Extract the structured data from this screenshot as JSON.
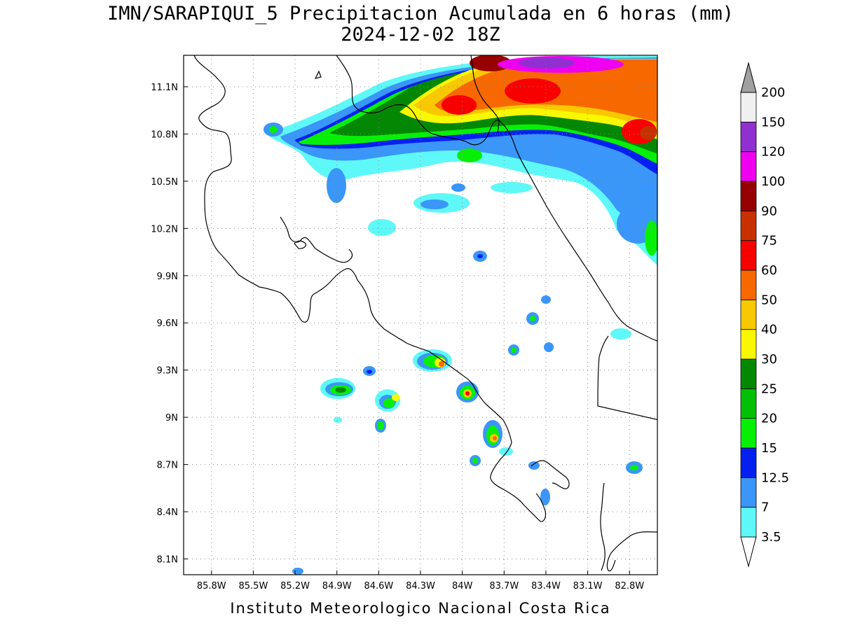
{
  "title": {
    "line1": "IMN/SARAPIQUI_5 Precipitacion Acumulada en 6 horas (mm)",
    "line2": "2024-12-02 18Z"
  },
  "footer": "Instituto Meteorologico Nacional Costa Rica",
  "chart_data": {
    "type": "heatmap",
    "variable": "Precipitacion Acumulada en 6 horas",
    "units": "mm",
    "lon_range": [
      -86.0,
      -82.6
    ],
    "lat_range": [
      8.0,
      11.3
    ],
    "x_ticks": [
      "85.8W",
      "85.5W",
      "85.2W",
      "84.9W",
      "84.6W",
      "84.3W",
      "84W",
      "83.7W",
      "83.4W",
      "83.1W",
      "82.8W"
    ],
    "x_tick_values": [
      -85.8,
      -85.5,
      -85.2,
      -84.9,
      -84.6,
      -84.3,
      -84.0,
      -83.7,
      -83.4,
      -83.1,
      -82.8
    ],
    "y_ticks": [
      "11.1N",
      "10.8N",
      "10.5N",
      "10.2N",
      "9.9N",
      "9.6N",
      "9.3N",
      "9N",
      "8.7N",
      "8.4N",
      "8.1N"
    ],
    "y_tick_values": [
      11.1,
      10.8,
      10.5,
      10.2,
      9.9,
      9.6,
      9.3,
      9.0,
      8.7,
      8.4,
      8.1
    ],
    "grid": true,
    "legend_placement": "right",
    "colorbar": {
      "labels": [
        "3.5",
        "7",
        "12.5",
        "15",
        "20",
        "25",
        "30",
        "40",
        "50",
        "60",
        "75",
        "90",
        "100",
        "120",
        "150",
        "200"
      ],
      "colors": [
        "#5ef8f8",
        "#3a96f8",
        "#0420f0",
        "#06f006",
        "#04c004",
        "#048804",
        "#f8f800",
        "#f8c800",
        "#f86800",
        "#f80000",
        "#c83000",
        "#960000",
        "#f000f0",
        "#9030d0",
        "#f0f0f0",
        "#a0a0a0"
      ]
    },
    "rain_cells": [
      {
        "lon": -84.05,
        "lat": 10.95,
        "level": 10
      },
      {
        "lon": -83.6,
        "lat": 11.1,
        "level": 10
      },
      {
        "lon": -82.7,
        "lat": 10.8,
        "level": 10
      },
      {
        "lon": -84.1,
        "lat": 9.35,
        "level": 7
      },
      {
        "lon": -83.85,
        "lat": 9.15,
        "level": 9
      },
      {
        "lon": -83.7,
        "lat": 8.85,
        "level": 7
      },
      {
        "lon": -84.85,
        "lat": 9.2,
        "level": 4
      },
      {
        "lon": -84.55,
        "lat": 9.05,
        "level": 5
      },
      {
        "lon": -84.47,
        "lat": 9.12,
        "level": 6
      },
      {
        "lon": -84.57,
        "lat": 8.93,
        "level": 4
      },
      {
        "lon": -84.51,
        "lat": 9.28,
        "level": 3
      },
      {
        "lon": -83.85,
        "lat": 10.03,
        "level": 3
      },
      {
        "lon": -83.42,
        "lat": 9.62,
        "level": 3
      },
      {
        "lon": -83.33,
        "lat": 9.74,
        "level": 2
      },
      {
        "lon": -83.59,
        "lat": 9.42,
        "level": 3
      },
      {
        "lon": -83.3,
        "lat": 9.44,
        "level": 2
      },
      {
        "lon": -83.87,
        "lat": 8.72,
        "level": 3
      },
      {
        "lon": -82.72,
        "lat": 8.69,
        "level": 3
      },
      {
        "lon": -83.28,
        "lat": 8.5,
        "level": 2
      },
      {
        "lon": -83.4,
        "lat": 8.69,
        "level": 2
      },
      {
        "lon": -85.25,
        "lat": 10.84,
        "level": 3
      }
    ]
  }
}
